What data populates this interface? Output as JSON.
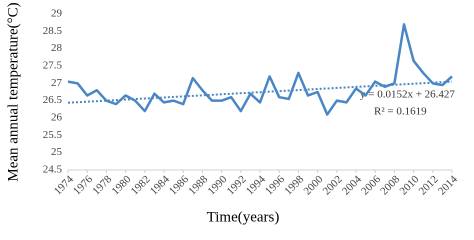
{
  "chart_data": {
    "type": "line",
    "x_label": "Time(years)",
    "y_label": "Mean annual temperature(°C)",
    "x": [
      1974,
      1975,
      1976,
      1977,
      1978,
      1979,
      1980,
      1981,
      1982,
      1983,
      1984,
      1985,
      1986,
      1987,
      1988,
      1989,
      1990,
      1991,
      1992,
      1993,
      1994,
      1995,
      1996,
      1997,
      1998,
      1999,
      2000,
      2001,
      2002,
      2003,
      2004,
      2005,
      2006,
      2007,
      2008,
      2009,
      2010,
      2011,
      2012,
      2013,
      2014
    ],
    "series": [
      {
        "color": "#4a86c5",
        "values": [
          27.05,
          27.0,
          26.65,
          26.8,
          26.5,
          26.4,
          26.65,
          26.5,
          26.2,
          26.7,
          26.45,
          26.5,
          26.4,
          27.15,
          26.8,
          26.5,
          26.5,
          26.6,
          26.2,
          26.7,
          26.45,
          27.2,
          26.6,
          26.55,
          27.3,
          26.65,
          26.75,
          26.1,
          26.5,
          26.45,
          26.85,
          26.65,
          27.05,
          26.9,
          27.0,
          28.7,
          27.65,
          27.3,
          27.0,
          26.95,
          27.2
        ]
      }
    ],
    "trendline": {
      "x": [
        1974,
        2014
      ],
      "values": [
        26.44,
        27.05
      ],
      "color": "#4a86c5",
      "equation": "y = 0.0152x + 26.427",
      "r_squared": "R² = 0.1619"
    },
    "xlim": [
      1974,
      2014
    ],
    "xticks": [
      1974,
      1976,
      1978,
      1980,
      1982,
      1984,
      1986,
      1988,
      1990,
      1992,
      1994,
      1996,
      1998,
      2000,
      2002,
      2004,
      2006,
      2008,
      2010,
      2012,
      2014
    ],
    "ylim": [
      24.5,
      29
    ],
    "yticks": [
      24.5,
      25,
      25.5,
      26,
      26.5,
      27,
      27.5,
      28,
      28.5,
      29
    ],
    "grid": false
  }
}
